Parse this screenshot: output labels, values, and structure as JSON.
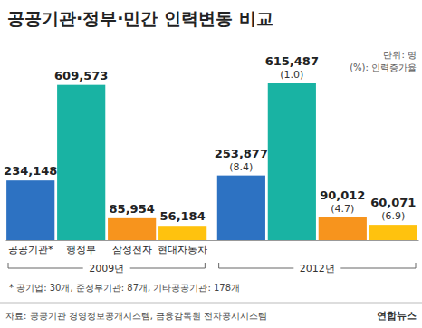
{
  "chart_data": {
    "type": "bar",
    "title": "공공기관·정부·민간 인력변동  비교",
    "categories": [
      "2009년",
      "2012년"
    ],
    "series": [
      {
        "name": "공공기관*",
        "color": "#2d72c2",
        "values": [
          234148,
          253877
        ],
        "value_labels": [
          "234,148",
          "253,877"
        ],
        "growth": [
          null,
          8.4
        ],
        "growth_labels": [
          null,
          "(8.4)"
        ]
      },
      {
        "name": "행정부",
        "color": "#19b3a3",
        "values": [
          609573,
          615487
        ],
        "value_labels": [
          "609,573",
          "615,487"
        ],
        "growth": [
          null,
          1.0
        ],
        "growth_labels": [
          null,
          "(1.0)"
        ]
      },
      {
        "name": "삼성전자",
        "color": "#f7941d",
        "values": [
          85954,
          90012
        ],
        "value_labels": [
          "85,954",
          "90,012"
        ],
        "growth": [
          null,
          4.7
        ],
        "growth_labels": [
          null,
          "(4.7)"
        ]
      },
      {
        "name": "현대자동차",
        "color": "#ffc20e",
        "values": [
          56184,
          60071
        ],
        "value_labels": [
          "56,184",
          "60,071"
        ],
        "growth": [
          null,
          6.9
        ],
        "growth_labels": [
          null,
          "(6.9)"
        ]
      }
    ],
    "data_labels": true,
    "tick_labels": "x",
    "annotations": [
      "단위: 명",
      "(%): 인력증가율",
      "* 공기업: 30개, 준정부기관: 87개, 기타공공기관: 178개",
      "자료: 공공기관 경영정보공개시스템, 금융감독원 전자공시시스템",
      "연합뉴스"
    ]
  }
}
